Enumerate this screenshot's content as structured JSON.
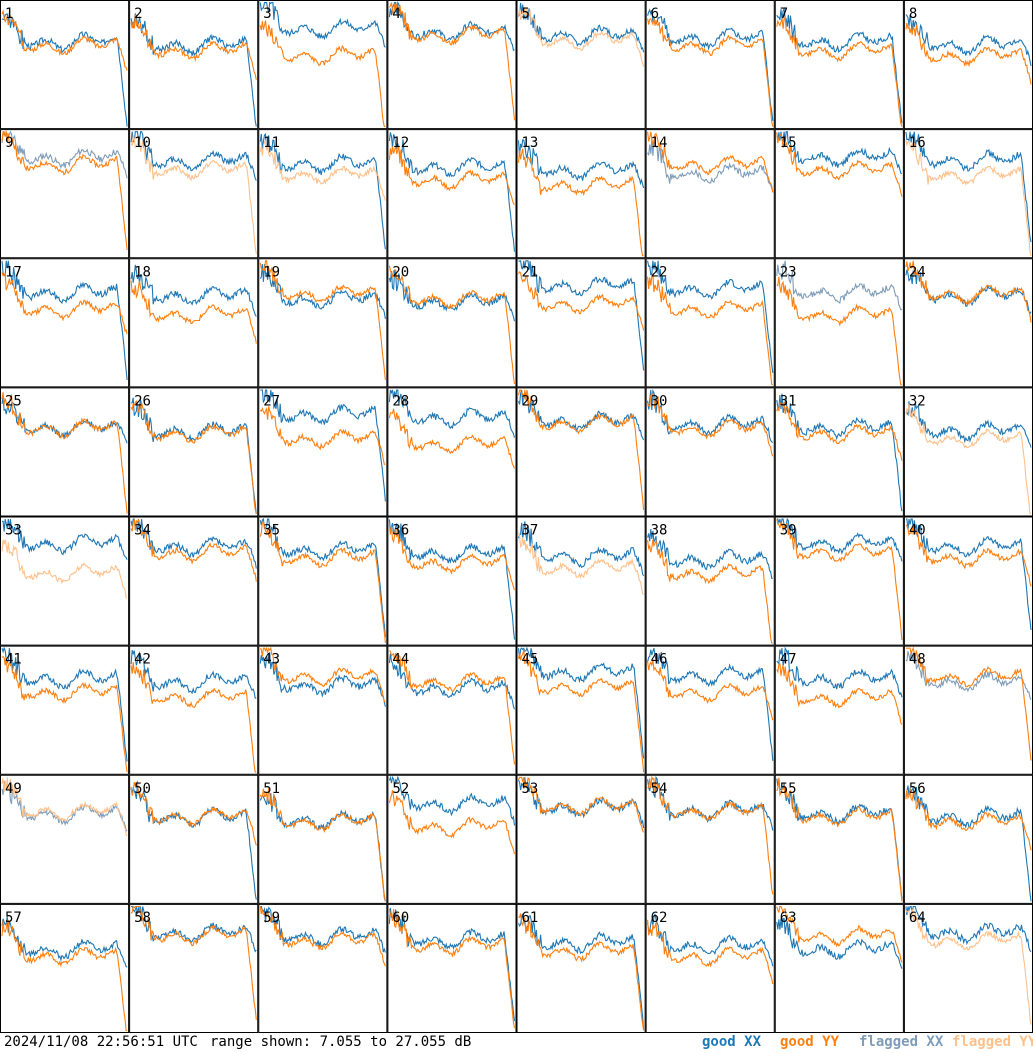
{
  "chart_data": {
    "type": "line",
    "layout": "8x8 small multiples",
    "panel_labels": [
      "1",
      "2",
      "3",
      "4",
      "5",
      "6",
      "7",
      "8",
      "9",
      "10",
      "11",
      "12",
      "13",
      "14",
      "15",
      "16",
      "17",
      "18",
      "19",
      "20",
      "21",
      "22",
      "23",
      "24",
      "25",
      "26",
      "27",
      "28",
      "29",
      "30",
      "31",
      "32",
      "33",
      "34",
      "35",
      "36",
      "37",
      "38",
      "39",
      "40",
      "41",
      "42",
      "43",
      "44",
      "45",
      "46",
      "47",
      "48",
      "49",
      "50",
      "51",
      "52",
      "53",
      "54",
      "55",
      "56",
      "57",
      "58",
      "59",
      "60",
      "61",
      "62",
      "63",
      "64"
    ],
    "y_range_db": [
      7.055,
      27.055
    ],
    "series": [
      {
        "name": "good XX",
        "color": "#1f77b4"
      },
      {
        "name": "good YY",
        "color": "#ff7f0e"
      },
      {
        "name": "flagged XX",
        "color": "#7f9cb8"
      },
      {
        "name": "flagged YY",
        "color": "#ffc08a"
      }
    ],
    "flagged_panels": {
      "xx": [
        9,
        14,
        23,
        48,
        49
      ],
      "yy": [
        5,
        10,
        11,
        16,
        32,
        33,
        37,
        49,
        64
      ]
    }
  },
  "footer": {
    "timestamp": "2024/11/08 22:56:51 UTC",
    "range_text": "range shown: 7.055 to 27.055 dB",
    "legend_good_xx": "good XX",
    "legend_good_yy": "good YY",
    "legend_flagged_xx": "flagged XX",
    "legend_flagged_yy": "flagged YY"
  }
}
